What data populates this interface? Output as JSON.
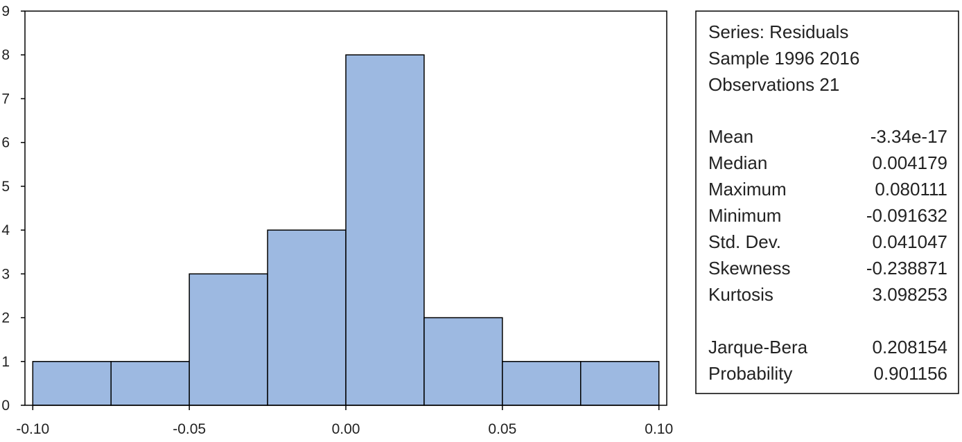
{
  "chart_data": {
    "type": "histogram",
    "bins": [
      -0.1,
      -0.075,
      -0.05,
      -0.025,
      0,
      0.025,
      0.05,
      0.075,
      0.1
    ],
    "values": [
      1,
      1,
      3,
      4,
      8,
      2,
      1,
      1
    ],
    "color": "#9db9e1",
    "xlim": [
      -0.1025,
      0.1025
    ],
    "xticks": [
      {
        "value": -0.1,
        "label": "-0.10"
      },
      {
        "value": -0.05,
        "label": "-0.05"
      },
      {
        "value": 0,
        "label": "0.00"
      },
      {
        "value": 0.05,
        "label": "0.05"
      },
      {
        "value": 0.1,
        "label": "0.10"
      }
    ],
    "ylim": [
      0,
      9
    ],
    "yticks": [
      0,
      1,
      2,
      3,
      4,
      5,
      6,
      7,
      8,
      9
    ],
    "stats_header": [
      "Series: Residuals",
      "Sample 1996 2016",
      "Observations 21"
    ],
    "stats": [
      {
        "label": "Mean",
        "value": "-3.34e-17"
      },
      {
        "label": "Median",
        "value": "0.004179"
      },
      {
        "label": "Maximum",
        "value": "0.080111"
      },
      {
        "label": "Minimum",
        "value": "-0.091632"
      },
      {
        "label": "Std. Dev.",
        "value": "0.041047"
      },
      {
        "label": "Skewness",
        "value": "-0.238871"
      },
      {
        "label": "Kurtosis",
        "value": "3.098253"
      }
    ],
    "tests": [
      {
        "label": "Jarque-Bera",
        "value": "0.208154"
      },
      {
        "label": "Probability",
        "value": "0.901156"
      }
    ]
  }
}
